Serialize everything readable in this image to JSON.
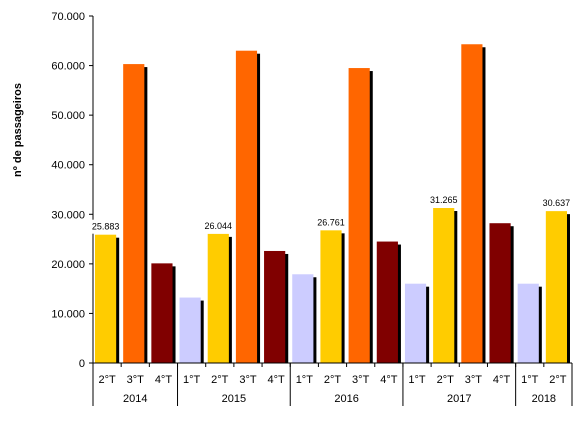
{
  "chart_data": {
    "type": "bar",
    "ylabel": "nº de passageiros",
    "ylim": [
      0,
      70000
    ],
    "yticks": [
      0,
      10000,
      20000,
      30000,
      40000,
      50000,
      60000,
      70000
    ],
    "ytick_labels": [
      "0",
      "10.000",
      "20.000",
      "30.000",
      "40.000",
      "50.000",
      "60.000",
      "70.000"
    ],
    "grid": false,
    "legend": "none",
    "groups": [
      {
        "label": "2014",
        "quarters": [
          "2°T",
          "3°T",
          "4°T"
        ]
      },
      {
        "label": "2015",
        "quarters": [
          "1°T",
          "2°T",
          "3°T",
          "4°T"
        ]
      },
      {
        "label": "2016",
        "quarters": [
          "1°T",
          "2°T",
          "3°T",
          "4°T"
        ]
      },
      {
        "label": "2017",
        "quarters": [
          "1°T",
          "2°T",
          "3°T",
          "4°T"
        ]
      },
      {
        "label": "2018",
        "quarters": [
          "1°T",
          "2°T"
        ]
      }
    ],
    "bars": [
      {
        "group": 0,
        "quarter": "2°T",
        "value": 25883,
        "label": "25.883"
      },
      {
        "group": 0,
        "quarter": "3°T",
        "value": 60300,
        "label": ""
      },
      {
        "group": 0,
        "quarter": "4°T",
        "value": 20100,
        "label": ""
      },
      {
        "group": 1,
        "quarter": "1°T",
        "value": 13200,
        "label": ""
      },
      {
        "group": 1,
        "quarter": "2°T",
        "value": 26044,
        "label": "26.044"
      },
      {
        "group": 1,
        "quarter": "3°T",
        "value": 63000,
        "label": ""
      },
      {
        "group": 1,
        "quarter": "4°T",
        "value": 22600,
        "label": ""
      },
      {
        "group": 2,
        "quarter": "1°T",
        "value": 17900,
        "label": ""
      },
      {
        "group": 2,
        "quarter": "2°T",
        "value": 26761,
        "label": "26.761"
      },
      {
        "group": 2,
        "quarter": "3°T",
        "value": 59500,
        "label": ""
      },
      {
        "group": 2,
        "quarter": "4°T",
        "value": 24500,
        "label": ""
      },
      {
        "group": 3,
        "quarter": "1°T",
        "value": 16000,
        "label": ""
      },
      {
        "group": 3,
        "quarter": "2°T",
        "value": 31265,
        "label": "31.265"
      },
      {
        "group": 3,
        "quarter": "3°T",
        "value": 64300,
        "label": ""
      },
      {
        "group": 3,
        "quarter": "4°T",
        "value": 28200,
        "label": ""
      },
      {
        "group": 4,
        "quarter": "1°T",
        "value": 16000,
        "label": ""
      },
      {
        "group": 4,
        "quarter": "2°T",
        "value": 30637,
        "label": "30.637"
      }
    ],
    "colors": {
      "1°T": "#ccccff",
      "2°T": "#ffcc00",
      "3°T": "#ff6600",
      "4°T": "#800000",
      "shadow": "#000000",
      "axis": "#000000"
    }
  }
}
